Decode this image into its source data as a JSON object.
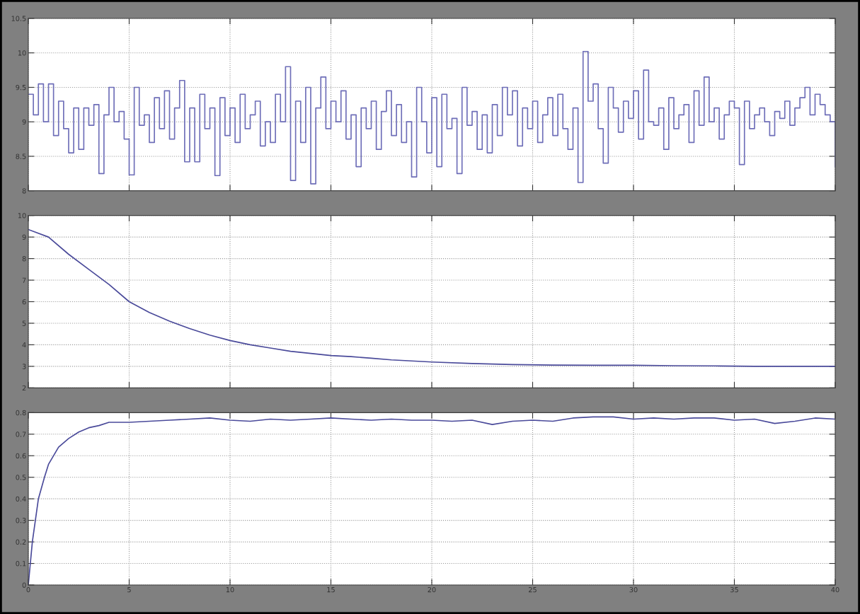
{
  "chart_data": [
    {
      "type": "step",
      "x": [
        0,
        0.25,
        0.5,
        0.75,
        1,
        1.25,
        1.5,
        1.75,
        2,
        2.25,
        2.5,
        2.75,
        3,
        3.25,
        3.5,
        3.75,
        4,
        4.25,
        4.5,
        4.75,
        5,
        5.25,
        5.5,
        5.75,
        6,
        6.25,
        6.5,
        6.75,
        7,
        7.25,
        7.5,
        7.75,
        8,
        8.25,
        8.5,
        8.75,
        9,
        9.25,
        9.5,
        9.75,
        10,
        10.25,
        10.5,
        10.75,
        11,
        11.25,
        11.5,
        11.75,
        12,
        12.25,
        12.5,
        12.75,
        13,
        13.25,
        13.5,
        13.75,
        14,
        14.25,
        14.5,
        14.75,
        15,
        15.25,
        15.5,
        15.75,
        16,
        16.25,
        16.5,
        16.75,
        17,
        17.25,
        17.5,
        17.75,
        18,
        18.25,
        18.5,
        18.75,
        19,
        19.25,
        19.5,
        19.75,
        20,
        20.25,
        20.5,
        20.75,
        21,
        21.25,
        21.5,
        21.75,
        22,
        22.25,
        22.5,
        22.75,
        23,
        23.25,
        23.5,
        23.75,
        24,
        24.25,
        24.5,
        24.75,
        25,
        25.25,
        25.5,
        25.75,
        26,
        26.25,
        26.5,
        26.75,
        27,
        27.25,
        27.5,
        27.75,
        28,
        28.25,
        28.5,
        28.75,
        29,
        29.25,
        29.5,
        29.75,
        30,
        30.25,
        30.5,
        30.75,
        31,
        31.25,
        31.5,
        31.75,
        32,
        32.25,
        32.5,
        32.75,
        33,
        33.25,
        33.5,
        33.75,
        34,
        34.25,
        34.5,
        34.75,
        35,
        35.25,
        35.5,
        35.75,
        36,
        36.25,
        36.5,
        36.75,
        37,
        37.25,
        37.5,
        37.75,
        38,
        38.25,
        38.5,
        38.75,
        39,
        39.25,
        39.5,
        39.75,
        40
      ],
      "values": [
        9.4,
        9.1,
        9.55,
        9.0,
        9.55,
        8.8,
        9.3,
        8.9,
        8.55,
        9.2,
        8.6,
        9.2,
        8.95,
        9.25,
        8.25,
        9.1,
        9.5,
        9.0,
        9.15,
        8.75,
        8.23,
        9.5,
        8.95,
        9.1,
        8.7,
        9.35,
        8.9,
        9.45,
        8.75,
        9.2,
        9.6,
        8.42,
        9.2,
        8.42,
        9.4,
        8.9,
        9.2,
        8.22,
        9.35,
        8.8,
        9.2,
        8.7,
        9.4,
        8.9,
        9.1,
        9.3,
        8.65,
        9.0,
        8.7,
        9.4,
        9.0,
        9.8,
        8.15,
        9.3,
        8.7,
        9.5,
        8.1,
        9.2,
        9.65,
        8.9,
        9.3,
        9.0,
        9.45,
        8.75,
        9.1,
        8.35,
        9.2,
        8.9,
        9.3,
        8.6,
        9.15,
        9.45,
        8.8,
        9.25,
        8.7,
        9.0,
        8.2,
        9.5,
        9.0,
        8.55,
        9.35,
        8.35,
        9.4,
        8.9,
        9.05,
        8.25,
        9.5,
        8.95,
        9.15,
        8.6,
        9.1,
        8.55,
        9.25,
        8.8,
        9.5,
        9.1,
        9.45,
        8.65,
        9.2,
        8.9,
        9.3,
        8.7,
        9.1,
        9.35,
        8.8,
        9.4,
        8.9,
        8.6,
        9.2,
        8.12,
        10.02,
        9.3,
        9.55,
        8.9,
        8.4,
        9.5,
        9.2,
        8.85,
        9.3,
        9.05,
        9.45,
        8.75,
        9.75,
        9.0,
        8.95,
        9.2,
        8.6,
        9.35,
        8.9,
        9.1,
        9.25,
        8.7,
        9.45,
        8.95,
        9.65,
        9.0,
        9.2,
        8.75,
        9.1,
        9.3,
        9.2,
        8.38,
        9.3,
        8.9,
        9.1,
        9.2,
        9.0,
        8.8,
        9.15,
        9.05,
        9.3,
        8.95,
        9.2,
        9.35,
        9.5,
        9.1,
        9.4,
        9.25,
        9.1,
        9.0,
        8.35
      ],
      "color": "#6e6eb8",
      "xlim": [
        0,
        40
      ],
      "xticks": [
        0,
        5,
        10,
        15,
        20,
        25,
        30,
        35,
        40
      ],
      "ylim": [
        8,
        10.5
      ],
      "yticks": [
        8,
        8.5,
        9,
        9.5,
        10,
        10.5
      ],
      "grid": true,
      "tick_labels": "y"
    },
    {
      "type": "line",
      "x": [
        0,
        1,
        2,
        3,
        4,
        5,
        6,
        7,
        8,
        9,
        10,
        11,
        12,
        13,
        14,
        15,
        16,
        17,
        18,
        19,
        20,
        22,
        24,
        26,
        28,
        30,
        32,
        34,
        36,
        38,
        40
      ],
      "values": [
        9.35,
        9.0,
        8.2,
        7.5,
        6.8,
        6.0,
        5.5,
        5.1,
        4.75,
        4.45,
        4.2,
        4.0,
        3.85,
        3.7,
        3.6,
        3.5,
        3.45,
        3.38,
        3.3,
        3.25,
        3.2,
        3.13,
        3.08,
        3.06,
        3.05,
        3.05,
        3.03,
        3.02,
        3.0,
        3.0,
        3.0
      ],
      "color": "#4a4a9a",
      "xlim": [
        0,
        40
      ],
      "xticks": [
        0,
        5,
        10,
        15,
        20,
        25,
        30,
        35,
        40
      ],
      "ylim": [
        2,
        10
      ],
      "yticks": [
        2,
        3,
        4,
        5,
        6,
        7,
        8,
        9,
        10
      ],
      "grid": true,
      "tick_labels": "y"
    },
    {
      "type": "line",
      "x": [
        0,
        0.2,
        0.5,
        0.8,
        1,
        1.5,
        2,
        2.5,
        3,
        3.5,
        4,
        5,
        6,
        7,
        8,
        9,
        10,
        11,
        12,
        13,
        14,
        15,
        16,
        17,
        18,
        19,
        20,
        21,
        22,
        23,
        24,
        25,
        26,
        27,
        28,
        29,
        30,
        31,
        32,
        33,
        34,
        35,
        36,
        37,
        38,
        39,
        40
      ],
      "values": [
        0,
        0.2,
        0.4,
        0.5,
        0.56,
        0.64,
        0.68,
        0.71,
        0.73,
        0.74,
        0.755,
        0.755,
        0.76,
        0.765,
        0.77,
        0.775,
        0.765,
        0.76,
        0.77,
        0.765,
        0.77,
        0.775,
        0.77,
        0.765,
        0.77,
        0.765,
        0.765,
        0.76,
        0.765,
        0.745,
        0.76,
        0.765,
        0.76,
        0.775,
        0.78,
        0.78,
        0.77,
        0.775,
        0.77,
        0.775,
        0.775,
        0.765,
        0.77,
        0.75,
        0.76,
        0.775,
        0.77
      ],
      "color": "#4a4a9a",
      "xlim": [
        0,
        40
      ],
      "xticks": [
        0,
        5,
        10,
        15,
        20,
        25,
        30,
        35,
        40
      ],
      "ylim": [
        0,
        0.8
      ],
      "yticks": [
        0,
        0.1,
        0.2,
        0.3,
        0.4,
        0.5,
        0.6,
        0.7,
        0.8
      ],
      "grid": true
    }
  ]
}
